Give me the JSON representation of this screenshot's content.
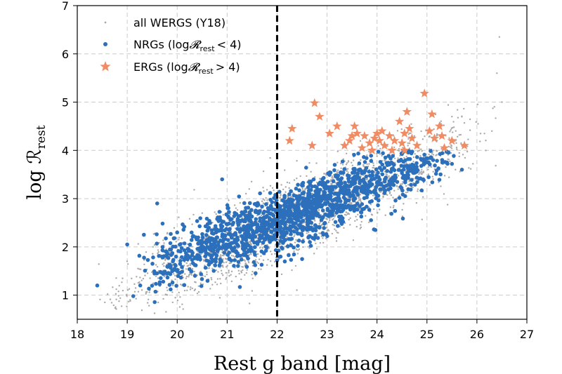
{
  "chart_data": {
    "type": "scatter",
    "xlabel": "Rest g band [mag]",
    "ylabel": "log ℛ",
    "ylabel_sub": "rest",
    "xlim": [
      18,
      27
    ],
    "ylim": [
      0.5,
      7
    ],
    "xticks": [
      "18",
      "19",
      "20",
      "21",
      "22",
      "23",
      "24",
      "25",
      "26",
      "27"
    ],
    "yticks": [
      "1",
      "2",
      "3",
      "4",
      "5",
      "6",
      "7"
    ],
    "grid": true,
    "legend_position": "upper-left",
    "reference_line": {
      "x": 22,
      "style": "dashed",
      "color": "#000000"
    },
    "series": [
      {
        "name": "all WERGS (Y18)",
        "marker": "dot",
        "color": "#a9a9a9",
        "model": {
          "trend_x0": 18.4,
          "trend_y0": 0.8,
          "slope": 0.46,
          "scatter": 0.38,
          "count": 2100,
          "x_range": [
            18.4,
            26.5
          ]
        },
        "extra_points": [
          [
            26.45,
            6.35
          ],
          [
            26.4,
            5.6
          ],
          [
            26.5,
            5.0
          ],
          [
            26.3,
            4.4
          ]
        ]
      },
      {
        "name": "NRGs (log𝓡rest < 4)",
        "legend_text": "NRGs (log",
        "legend_sub": "rest",
        "legend_cmp": "< 4)",
        "marker": "circle",
        "color": "#2c6fbb",
        "model": {
          "trend_x0": 19.0,
          "trend_y0": 1.35,
          "slope": 0.4,
          "scatter": 0.3,
          "count": 1500,
          "x_range": [
            19.0,
            25.8
          ],
          "ymax": 4.0
        },
        "extra_points": [
          [
            18.4,
            1.2
          ],
          [
            19.0,
            2.05
          ],
          [
            19.6,
            2.9
          ],
          [
            20.0,
            2.3
          ],
          [
            20.9,
            3.4
          ],
          [
            25.7,
            3.6
          ],
          [
            25.4,
            3.75
          ]
        ]
      },
      {
        "name": "ERGs (log𝓡rest > 4)",
        "legend_text": "ERGs (log",
        "legend_sub": "rest",
        "legend_cmp": "> 4)",
        "marker": "star",
        "color": "#f08c64",
        "points": [
          [
            22.25,
            4.2
          ],
          [
            22.3,
            4.45
          ],
          [
            22.7,
            4.1
          ],
          [
            22.75,
            4.98
          ],
          [
            22.85,
            4.7
          ],
          [
            23.05,
            4.35
          ],
          [
            23.2,
            4.5
          ],
          [
            23.35,
            4.1
          ],
          [
            23.5,
            4.3
          ],
          [
            23.55,
            4.5
          ],
          [
            23.6,
            4.35
          ],
          [
            23.7,
            4.05
          ],
          [
            23.75,
            4.3
          ],
          [
            23.85,
            4.15
          ],
          [
            23.9,
            4.0
          ],
          [
            23.95,
            4.25
          ],
          [
            24.0,
            4.35
          ],
          [
            24.05,
            4.2
          ],
          [
            24.1,
            4.4
          ],
          [
            24.15,
            4.1
          ],
          [
            24.25,
            4.3
          ],
          [
            24.3,
            4.0
          ],
          [
            24.35,
            4.2
          ],
          [
            24.45,
            4.6
          ],
          [
            24.5,
            4.15
          ],
          [
            24.55,
            4.35
          ],
          [
            24.6,
            4.8
          ],
          [
            24.65,
            4.45
          ],
          [
            24.7,
            4.25
          ],
          [
            24.8,
            4.1
          ],
          [
            24.95,
            5.18
          ],
          [
            25.05,
            4.4
          ],
          [
            25.1,
            4.75
          ],
          [
            25.15,
            4.25
          ],
          [
            25.25,
            4.5
          ],
          [
            25.3,
            4.3
          ],
          [
            25.35,
            4.05
          ],
          [
            25.5,
            4.2
          ],
          [
            25.75,
            4.1
          ],
          [
            24.55,
            4.0
          ],
          [
            23.45,
            4.2
          ]
        ]
      }
    ]
  }
}
